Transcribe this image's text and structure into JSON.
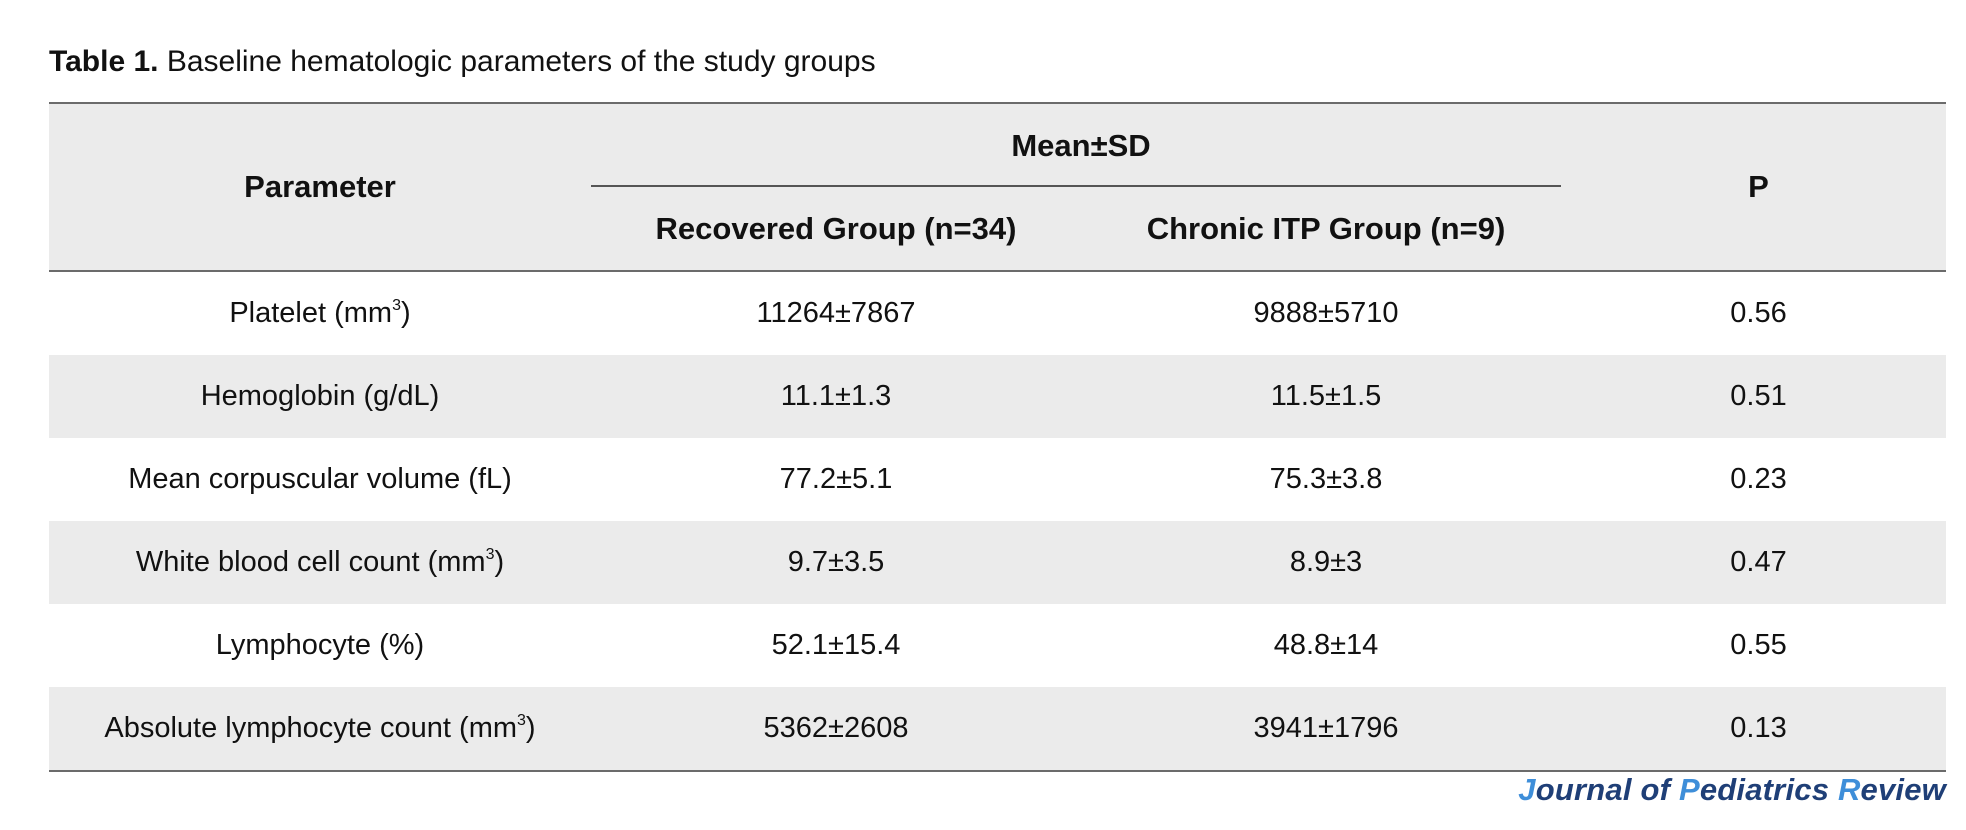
{
  "caption": {
    "label": "Table 1.",
    "text": "Baseline hematologic parameters of the study groups"
  },
  "table": {
    "headers": {
      "parameter": "Parameter",
      "group_header": "Mean±SD",
      "recovered": "Recovered Group (n=34)",
      "chronic": "Chronic ITP Group (n=9)",
      "p": "P"
    },
    "rows": [
      {
        "parameter": "Platelet (mm",
        "sup": "3",
        "suffix": ")",
        "recovered": "11264±7867",
        "chronic": "9888±5710",
        "p": "0.56"
      },
      {
        "parameter": "Hemoglobin (g/dL)",
        "sup": "",
        "suffix": "",
        "recovered": "11.1±1.3",
        "chronic": "11.5±1.5",
        "p": "0.51"
      },
      {
        "parameter": "Mean corpuscular volume (fL)",
        "sup": "",
        "suffix": "",
        "recovered": "77.2±5.1",
        "chronic": "75.3±3.8",
        "p": "0.23"
      },
      {
        "parameter": "White blood cell count (mm",
        "sup": "3",
        "suffix": ")",
        "recovered": "9.7±3.5",
        "chronic": "8.9±3",
        "p": "0.47"
      },
      {
        "parameter": "Lymphocyte (%)",
        "sup": "",
        "suffix": "",
        "recovered": "52.1±15.4",
        "chronic": "48.8±14",
        "p": "0.55"
      },
      {
        "parameter": "Absolute lymphocyte count (mm",
        "sup": "3",
        "suffix": ")",
        "recovered": "5362±2608",
        "chronic": "3941±1796",
        "p": "0.13"
      }
    ]
  },
  "journal": {
    "p1": "J",
    "p2": "ournal of ",
    "p3": "P",
    "p4": "ediatrics ",
    "p5": "R",
    "p6": "eview",
    "accent_color": "#3e8ed9",
    "base_color": "#1f3f77"
  }
}
